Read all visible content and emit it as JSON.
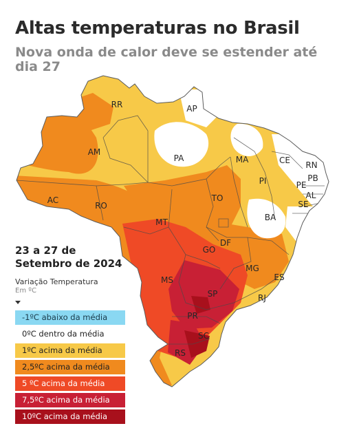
{
  "title": "Altas temperaturas no Brasil",
  "subtitle": "Nova onda de calor deve se estender até dia 27",
  "period": "23 a 27 de Setembro de 2024",
  "variation_title": "Variação Temperatura",
  "variation_unit": "Em ºC",
  "legend": [
    {
      "label": "-1ºC abaixo da média",
      "color": "#8ad8f2",
      "text_color": "#1a3a4a"
    },
    {
      "label": "0ºC dentro da média",
      "color": "#ffffff",
      "text_color": "#222222"
    },
    {
      "label": "1ºC acima da média",
      "color": "#f7c948",
      "text_color": "#222222"
    },
    {
      "label": "2,5ºC acima da média",
      "color": "#f08a1e",
      "text_color": "#222222"
    },
    {
      "label": "5 ºC acima da média",
      "color": "#ef4a26",
      "text_color": "#ffffff"
    },
    {
      "label": "7,5ºC acima da média",
      "color": "#c82035",
      "text_color": "#ffffff"
    },
    {
      "label": "10ºC acima da média",
      "color": "#a8101c",
      "text_color": "#ffffff"
    }
  ],
  "states": [
    "RR",
    "AP",
    "AM",
    "PA",
    "MA",
    "CE",
    "RN",
    "PB",
    "PE",
    "AL",
    "SE",
    "PI",
    "AC",
    "RO",
    "TO",
    "BA",
    "MT",
    "GO",
    "DF",
    "MG",
    "ES",
    "MS",
    "SP",
    "RJ",
    "PR",
    "SC",
    "RS"
  ]
}
